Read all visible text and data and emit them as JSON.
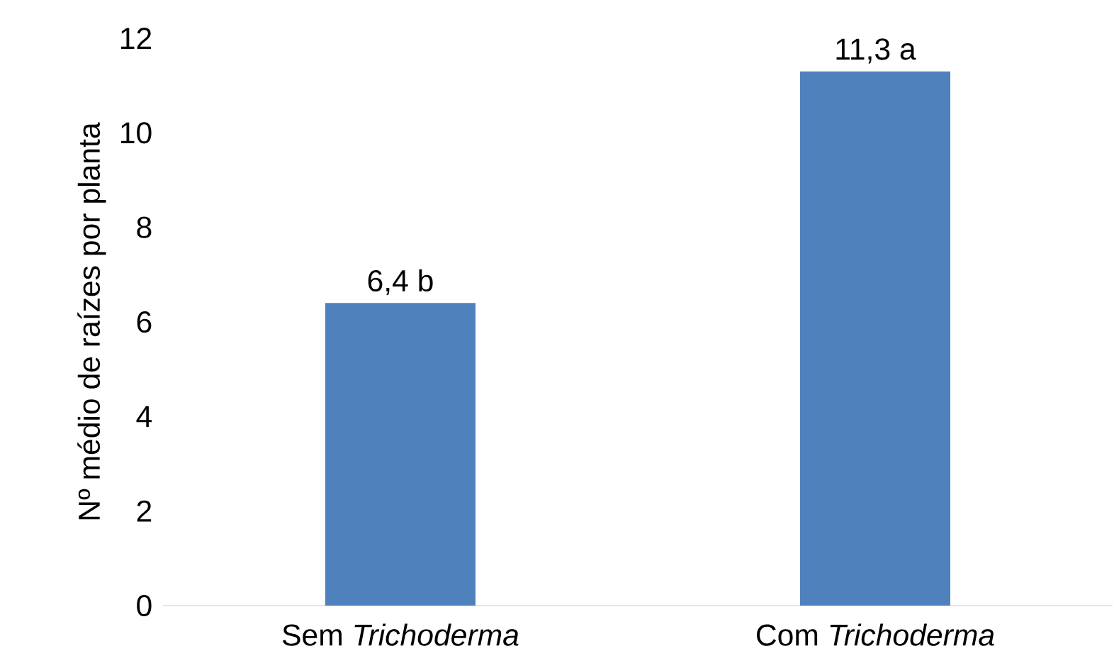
{
  "chart_data": {
    "type": "bar",
    "ylabel": "Nº médio de raízes por planta",
    "categories": [
      "Sem *Trichoderma*",
      "Com *Trichoderma*"
    ],
    "values": [
      6.4,
      11.3
    ],
    "value_labels": [
      "6,4 b",
      "11,3 a"
    ],
    "color": "#4f81bd",
    "ylim": [
      0,
      12
    ],
    "yticks": [
      0,
      2,
      4,
      6,
      8,
      10,
      12
    ]
  }
}
